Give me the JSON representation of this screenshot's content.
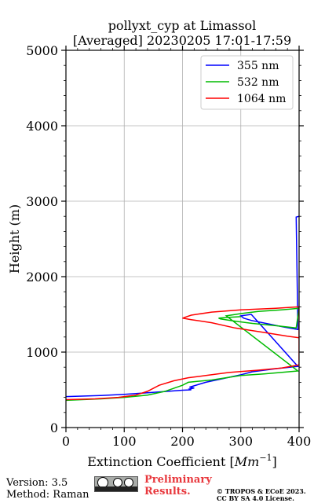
{
  "chart_data": {
    "type": "line",
    "title_line1": "pollyxt_cyp at Limassol",
    "title_line2": "[Averaged] 20230205 17:01-17:59",
    "xlabel_prefix": "Extinction Coefficient [",
    "xlabel_unit": "Mm",
    "xlabel_exp": "−1",
    "xlabel_suffix": "]",
    "ylabel": "Height (m)",
    "xlim": [
      0,
      400
    ],
    "ylim": [
      0,
      5000
    ],
    "xticks": [
      0,
      100,
      200,
      300,
      400
    ],
    "yticks": [
      0,
      1000,
      2000,
      3000,
      4000,
      5000
    ],
    "grid": true,
    "legend_position": "top-right",
    "series": [
      {
        "name": "355 nm",
        "color": "#0000ff",
        "points": [
          [
            0,
            410
          ],
          [
            60,
            425
          ],
          [
            100,
            440
          ],
          [
            140,
            460
          ],
          [
            175,
            480
          ],
          [
            200,
            495
          ],
          [
            215,
            500
          ],
          [
            212,
            510
          ],
          [
            220,
            525
          ],
          [
            212,
            535
          ],
          [
            240,
            600
          ],
          [
            270,
            650
          ],
          [
            300,
            700
          ],
          [
            320,
            740
          ],
          [
            360,
            780
          ],
          [
            398,
            810
          ],
          [
            318,
            1500
          ],
          [
            300,
            1480
          ],
          [
            305,
            1450
          ],
          [
            318,
            1420
          ],
          [
            350,
            1370
          ],
          [
            375,
            1330
          ],
          [
            398,
            1300
          ],
          [
            395,
            2790
          ],
          [
            400,
            2800
          ]
        ]
      },
      {
        "name": "532 nm",
        "color": "#00bb00",
        "points": [
          [
            0,
            360
          ],
          [
            60,
            380
          ],
          [
            100,
            400
          ],
          [
            140,
            430
          ],
          [
            170,
            480
          ],
          [
            200,
            560
          ],
          [
            210,
            600
          ],
          [
            250,
            630
          ],
          [
            300,
            690
          ],
          [
            340,
            710
          ],
          [
            398,
            750
          ],
          [
            275,
            1480
          ],
          [
            300,
            1510
          ],
          [
            330,
            1540
          ],
          [
            370,
            1560
          ],
          [
            400,
            1580
          ],
          [
            395,
            1320
          ],
          [
            360,
            1350
          ],
          [
            320,
            1380
          ],
          [
            290,
            1410
          ],
          [
            265,
            1440
          ],
          [
            262,
            1450
          ],
          [
            280,
            1460
          ],
          [
            300,
            1470
          ]
        ]
      },
      {
        "name": "1064 nm",
        "color": "#ff0000",
        "points": [
          [
            0,
            370
          ],
          [
            50,
            380
          ],
          [
            90,
            400
          ],
          [
            120,
            430
          ],
          [
            140,
            480
          ],
          [
            160,
            560
          ],
          [
            185,
            620
          ],
          [
            210,
            660
          ],
          [
            240,
            690
          ],
          [
            280,
            730
          ],
          [
            330,
            760
          ],
          [
            370,
            790
          ],
          [
            400,
            830
          ],
          [
            400,
            1600
          ],
          [
            360,
            1580
          ],
          [
            300,
            1560
          ],
          [
            250,
            1530
          ],
          [
            215,
            1490
          ],
          [
            200,
            1450
          ],
          [
            215,
            1430
          ],
          [
            250,
            1390
          ],
          [
            290,
            1320
          ],
          [
            340,
            1260
          ],
          [
            380,
            1210
          ],
          [
            400,
            1190
          ]
        ]
      }
    ]
  },
  "footer": {
    "version": "Version: 3.5",
    "method": "Method: Raman",
    "prelim_line1": "Preliminary",
    "prelim_line2": "Results.",
    "copyright_line1": "© TROPOS & ECoE 2023.",
    "copyright_line2": "CC BY SA 4.0 License."
  }
}
